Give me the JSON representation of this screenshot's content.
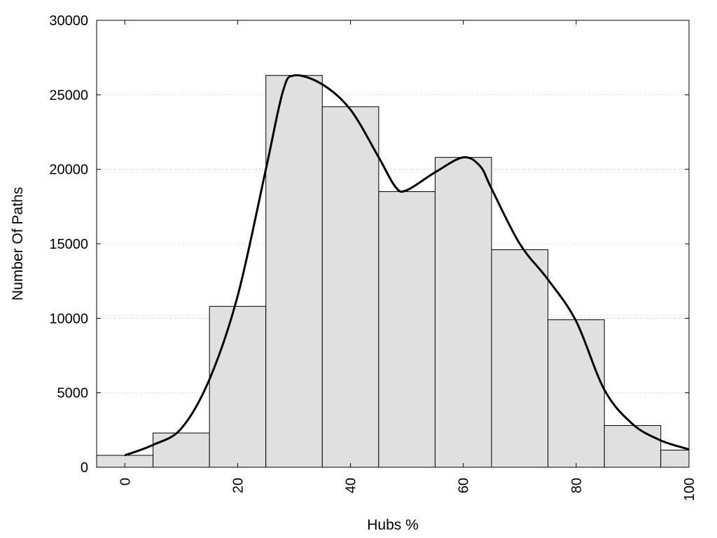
{
  "chart_data": {
    "type": "bar",
    "xlabel": "Hubs %",
    "ylabel": "Number Of Paths",
    "xlim": [
      -5,
      100
    ],
    "ylim": [
      0,
      30000
    ],
    "x_ticks": [
      0,
      20,
      40,
      60,
      80,
      100
    ],
    "y_ticks": [
      0,
      5000,
      10000,
      15000,
      20000,
      25000,
      30000
    ],
    "grid": "horizontal-dotted",
    "bar_color": "#e0e0e0",
    "line_color": "#000000",
    "bins": [
      {
        "start": -5,
        "end": 5,
        "value": 800
      },
      {
        "start": 5,
        "end": 15,
        "value": 2300
      },
      {
        "start": 15,
        "end": 25,
        "value": 10800
      },
      {
        "start": 25,
        "end": 35,
        "value": 26300
      },
      {
        "start": 35,
        "end": 45,
        "value": 24200
      },
      {
        "start": 45,
        "end": 55,
        "value": 18500
      },
      {
        "start": 55,
        "end": 65,
        "value": 20800
      },
      {
        "start": 65,
        "end": 75,
        "value": 14600
      },
      {
        "start": 75,
        "end": 85,
        "value": 9900
      },
      {
        "start": 85,
        "end": 95,
        "value": 2800
      },
      {
        "start": 95,
        "end": 100,
        "value": 1150
      }
    ],
    "curve": [
      {
        "x": 0,
        "y": 800
      },
      {
        "x": 5,
        "y": 1500
      },
      {
        "x": 10,
        "y": 2600
      },
      {
        "x": 15,
        "y": 5900
      },
      {
        "x": 20,
        "y": 11500
      },
      {
        "x": 25,
        "y": 20000
      },
      {
        "x": 28,
        "y": 25200
      },
      {
        "x": 30,
        "y": 26300
      },
      {
        "x": 35,
        "y": 25700
      },
      {
        "x": 40,
        "y": 24000
      },
      {
        "x": 45,
        "y": 20800
      },
      {
        "x": 48,
        "y": 18800
      },
      {
        "x": 50,
        "y": 18600
      },
      {
        "x": 55,
        "y": 19800
      },
      {
        "x": 60,
        "y": 20800
      },
      {
        "x": 63,
        "y": 20200
      },
      {
        "x": 65,
        "y": 18700
      },
      {
        "x": 70,
        "y": 15000
      },
      {
        "x": 75,
        "y": 12600
      },
      {
        "x": 80,
        "y": 9800
      },
      {
        "x": 85,
        "y": 5200
      },
      {
        "x": 90,
        "y": 2900
      },
      {
        "x": 95,
        "y": 1800
      },
      {
        "x": 100,
        "y": 1200
      }
    ]
  }
}
